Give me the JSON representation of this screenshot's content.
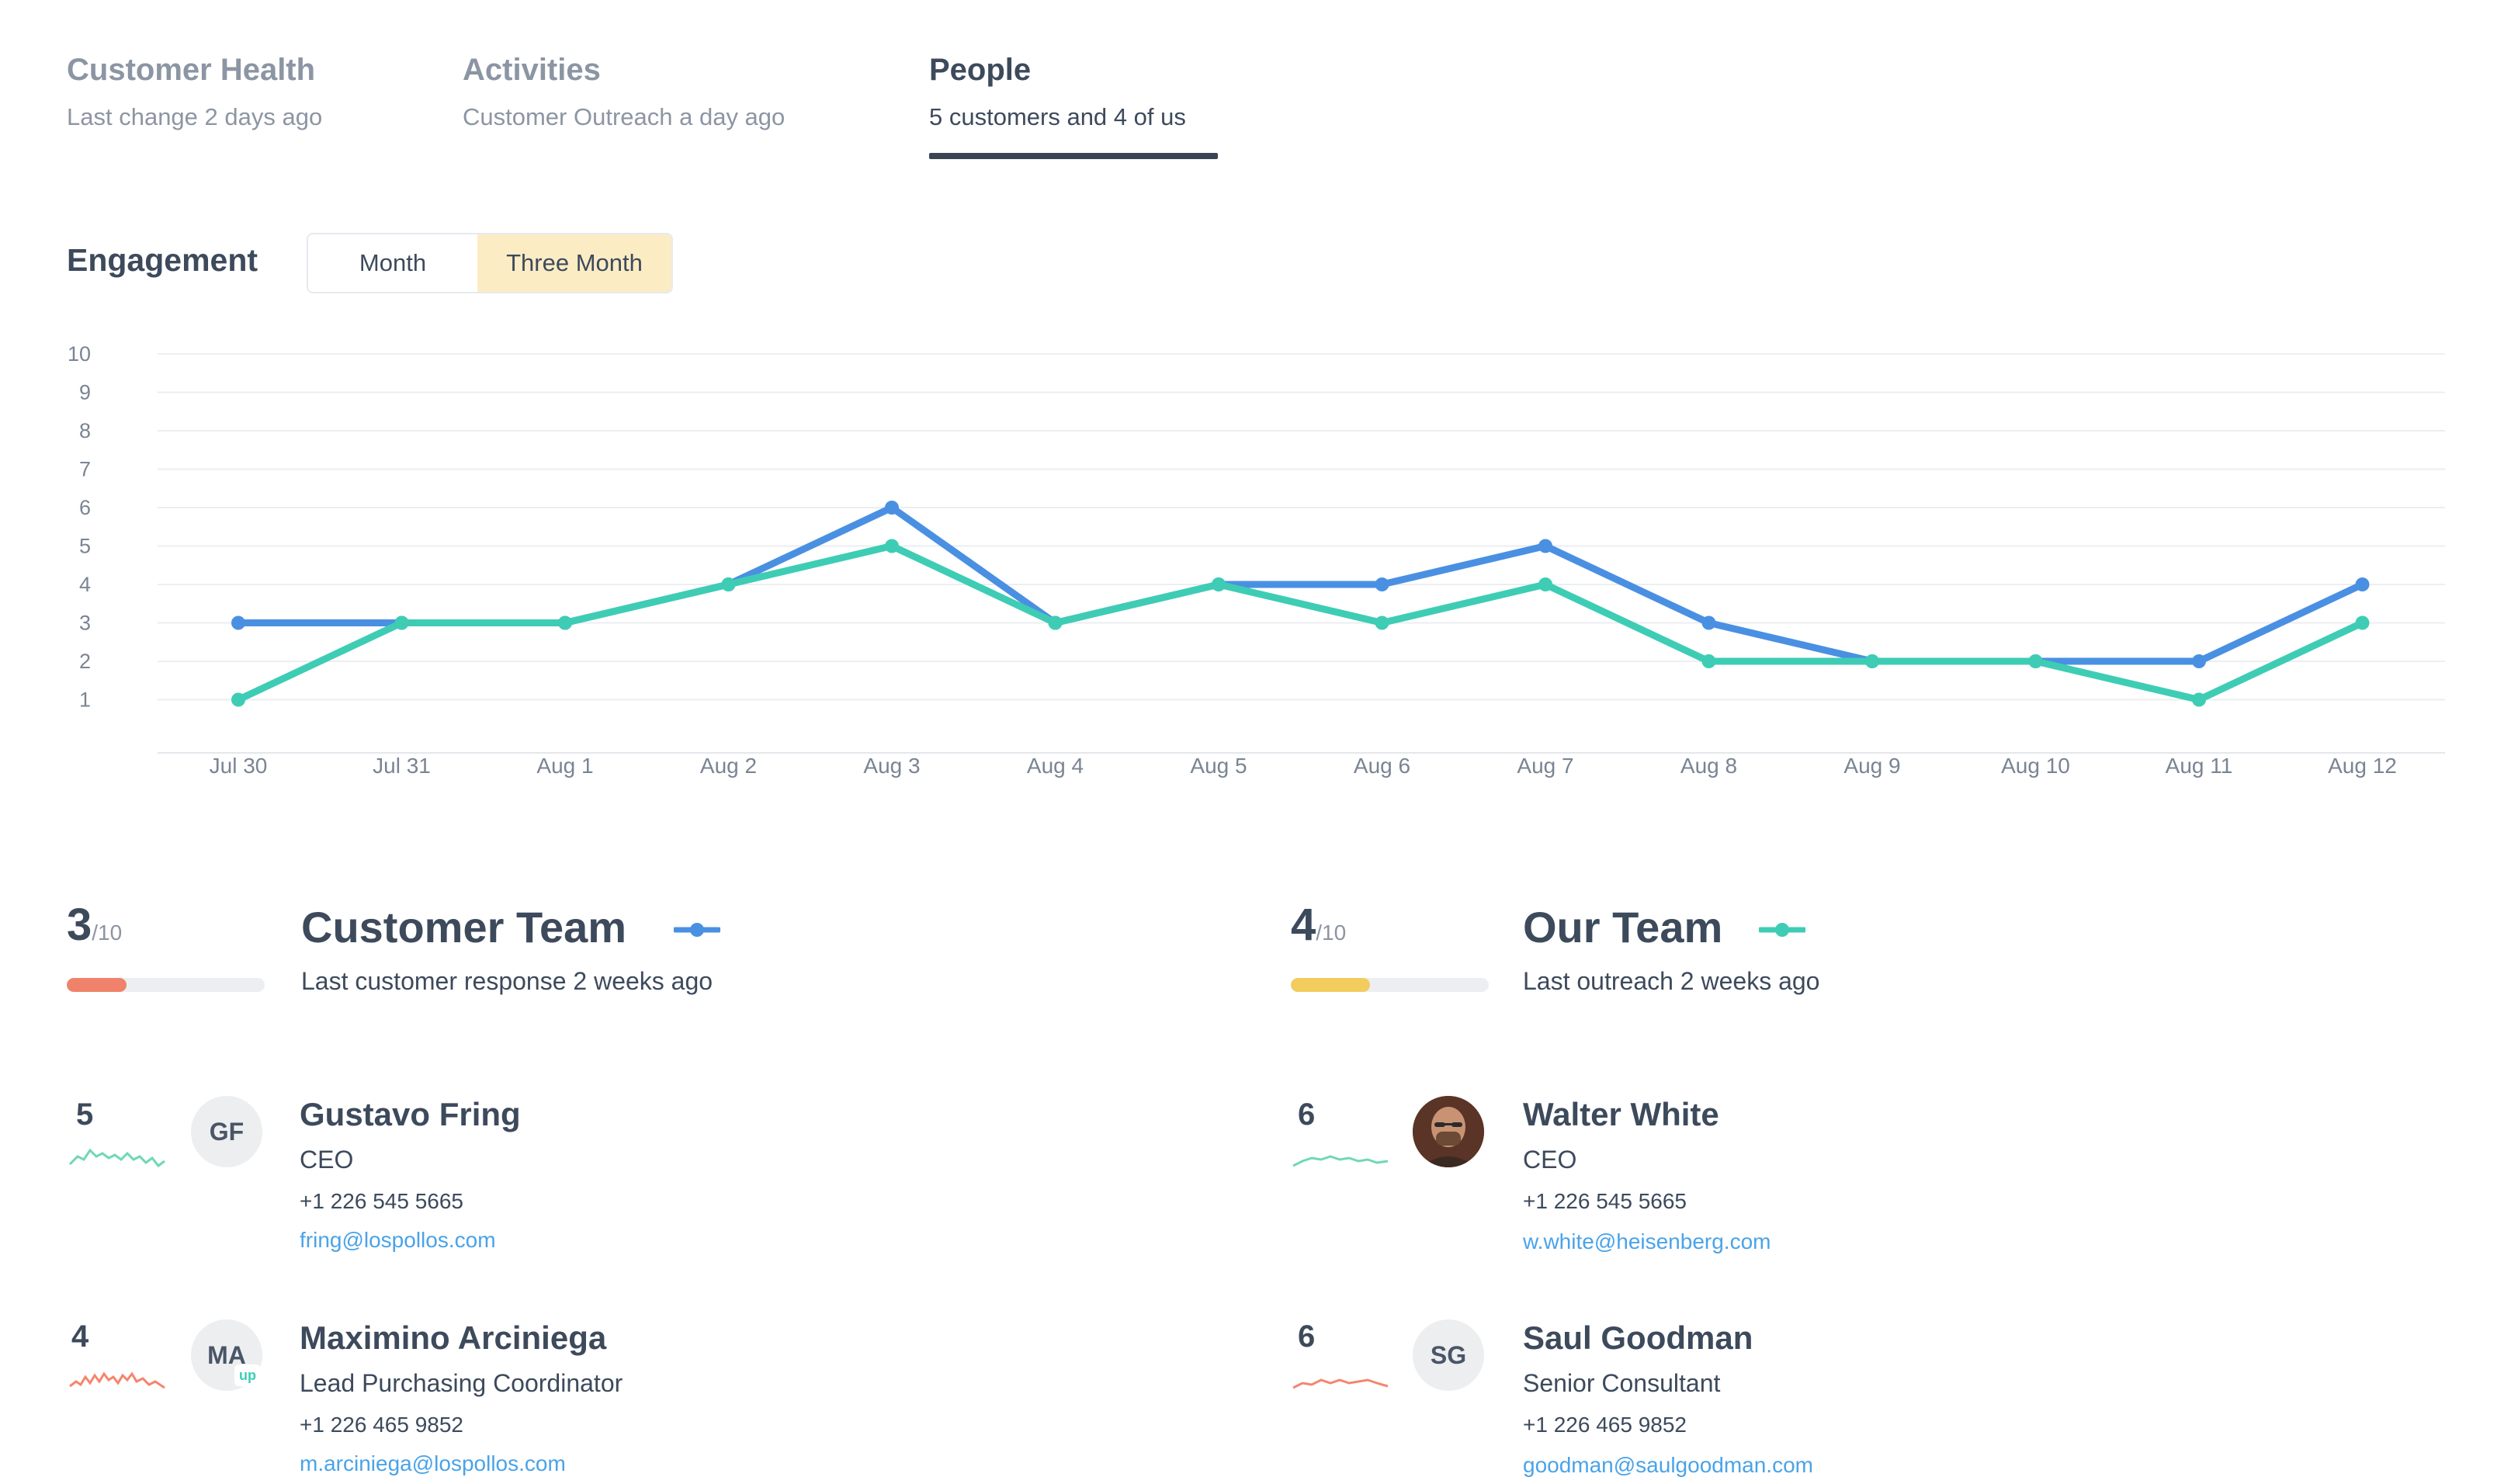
{
  "tabs": [
    {
      "title": "Customer Health",
      "subtitle": "Last change 2 days ago"
    },
    {
      "title": "Activities",
      "subtitle": "Customer Outreach a day ago"
    },
    {
      "title": "People",
      "subtitle": "5 customers and 4 of us"
    }
  ],
  "engagement": {
    "title": "Engagement",
    "range_options": [
      "Month",
      "Three Month"
    ],
    "selected_range": "Three Month"
  },
  "chart_data": {
    "type": "line",
    "categories": [
      "Jul 30",
      "Jul 31",
      "Aug 1",
      "Aug 2",
      "Aug 3",
      "Aug 4",
      "Aug 5",
      "Aug 6",
      "Aug 7",
      "Aug 8",
      "Aug 9",
      "Aug 10",
      "Aug 11",
      "Aug 12"
    ],
    "yticks": [
      1,
      2,
      3,
      4,
      5,
      6,
      7,
      8,
      9,
      10
    ],
    "ylim": [
      0,
      10
    ],
    "grid": true,
    "series": [
      {
        "key": "customer",
        "color": "#4a90e2",
        "values": [
          3,
          3,
          3,
          4,
          6,
          3,
          4,
          4,
          5,
          3,
          2,
          2,
          2,
          4
        ]
      },
      {
        "key": "ours",
        "color": "#3ecdb4",
        "values": [
          1,
          3,
          3,
          4,
          5,
          3,
          4,
          3,
          4,
          2,
          2,
          2,
          1,
          3
        ]
      }
    ]
  },
  "customer_team": {
    "score": "3",
    "score_max": "/10",
    "score_fraction": 0.3,
    "bar_color": "#f0826b",
    "legend_color": "#4a90e2",
    "title": "Customer Team",
    "subtitle": "Last customer response 2 weeks ago"
  },
  "our_team": {
    "score": "4",
    "score_max": "/10",
    "score_fraction": 0.4,
    "bar_color": "#f2cc5c",
    "legend_color": "#3ecdb4",
    "title": "Our Team",
    "subtitle": "Last outreach 2 weeks ago"
  },
  "customer_people": [
    {
      "score": "5",
      "initials": "GF",
      "name": "Gustavo Fring",
      "role": "CEO",
      "phone": "+1 226 545 5665",
      "email": "fring@lospollos.com",
      "spark_color": "#6fd8b6"
    },
    {
      "score": "4",
      "initials": "MA",
      "name": "Maximino Arciniega",
      "role": "Lead Purchasing Coordinator",
      "phone": "+1 226 465 9852",
      "email": "m.arciniega@lospollos.com",
      "spark_color": "#f4866e",
      "badge": "up"
    }
  ],
  "our_people": [
    {
      "score": "6",
      "initials": "",
      "name": "Walter White",
      "role": "CEO",
      "phone": "+1 226 545 5665",
      "email": "w.white@heisenberg.com",
      "spark_color": "#6fd8b6"
    },
    {
      "score": "6",
      "initials": "SG",
      "name": "Saul Goodman",
      "role": "Senior Consultant",
      "phone": "+1 226 465 9852",
      "email": "goodman@saulgoodman.com",
      "spark_color": "#f4866e"
    }
  ]
}
